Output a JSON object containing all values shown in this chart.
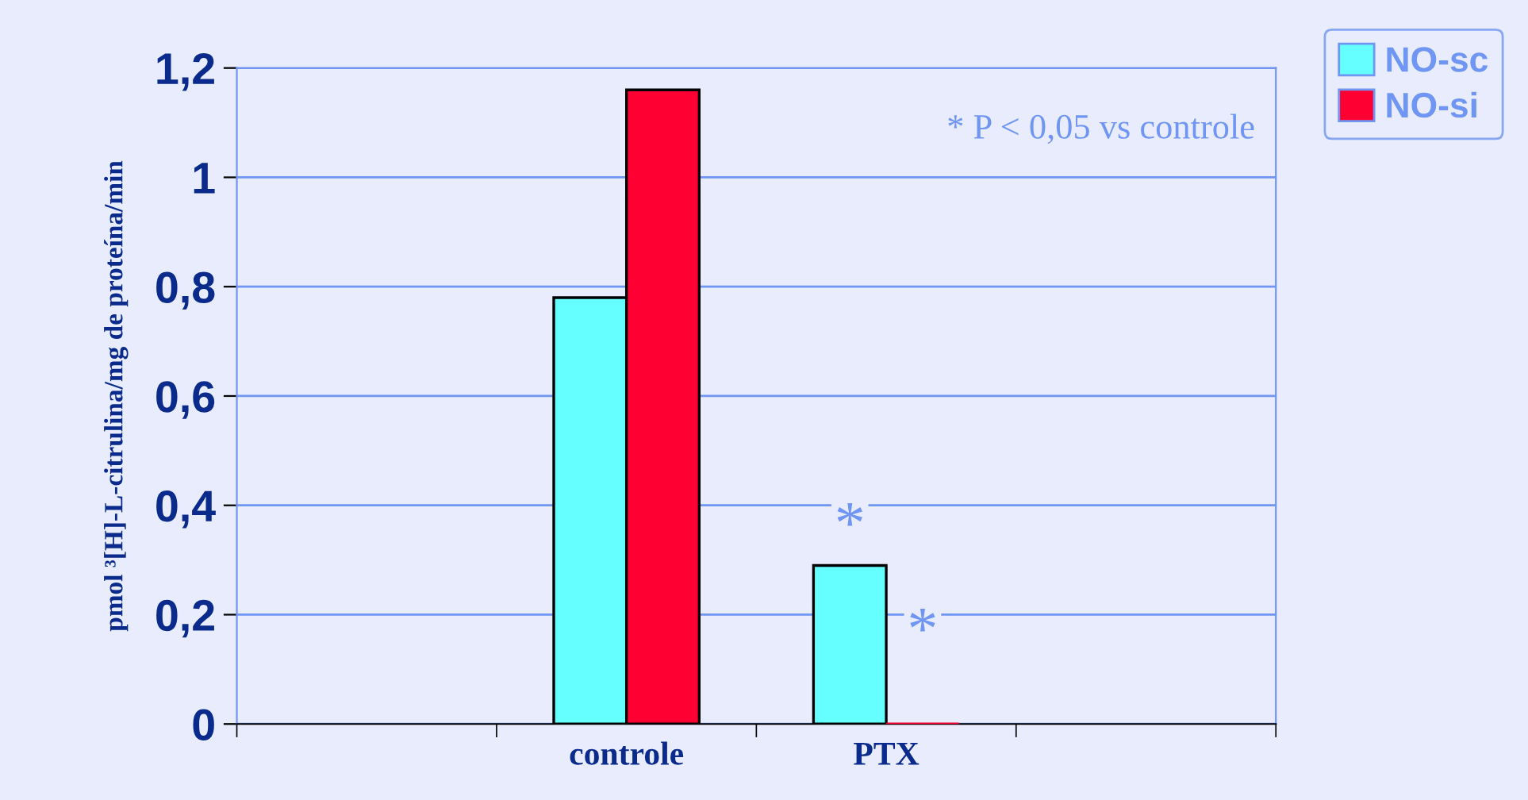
{
  "chart_data": {
    "type": "bar",
    "ylabel": "pmol ³[H]-L-citrulina/mg de proteína/min",
    "categories": [
      null,
      "controle",
      "PTX",
      null
    ],
    "series": [
      {
        "name": "NO-sc",
        "color": "#66ffff",
        "values": [
          null,
          0.78,
          0.29,
          null
        ]
      },
      {
        "name": "NO-si",
        "color": "#ff0033",
        "values": [
          null,
          1.16,
          0,
          null
        ]
      }
    ],
    "ylim": [
      0,
      1.2
    ],
    "yticks": [
      0,
      {
        "value": 0.2,
        "label": "0,2"
      },
      {
        "value": 0.4,
        "label": "0,4"
      },
      {
        "value": 0.6,
        "label": "0,6"
      },
      {
        "value": 0.8,
        "label": "0,8"
      },
      1,
      {
        "value": 1.2,
        "label": "1,2"
      }
    ],
    "grid": "y",
    "legend": "top right",
    "annotations": [
      "* P < 0,05 vs controle",
      {
        "text": "*",
        "x": "PTX",
        "y": 0.29
      },
      {
        "text": "*",
        "x": "PTX",
        "y": 0
      }
    ]
  }
}
